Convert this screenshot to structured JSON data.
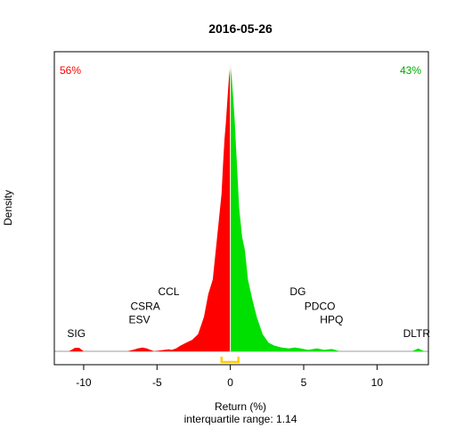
{
  "chart_data": {
    "type": "area",
    "title": "2016-05-26",
    "xlabel": "Return (%)",
    "ylabel": "Density",
    "subtitle": "interquartile range: 1.14",
    "xlim": [
      -12,
      13.5
    ],
    "ylim": [
      0,
      1.0
    ],
    "x_ticks": [
      -10,
      -5,
      0,
      5,
      10
    ],
    "x_tick_labels": [
      "-10",
      "-5",
      "0",
      "5",
      "10"
    ],
    "split_at": 0,
    "share_negative": "56%",
    "share_positive": "43%",
    "interquartile_range": [
      -0.6,
      0.55
    ],
    "colors": {
      "negative": "#ff0000",
      "positive": "#00e000",
      "iqr_bracket": "#ffcc00",
      "baseline": "#bebebe",
      "text": "#000000"
    },
    "density": {
      "x": [
        -11.0,
        -10.6,
        -10.3,
        -10.0,
        -7.0,
        -6.3,
        -6.0,
        -5.7,
        -5.2,
        -4.5,
        -4.2,
        -4.0,
        -3.7,
        -3.4,
        -3.0,
        -2.6,
        -2.2,
        -1.8,
        -1.5,
        -1.2,
        -1.0,
        -0.8,
        -0.6,
        -0.5,
        -0.4,
        -0.3,
        -0.2,
        -0.1,
        0.0,
        0.1,
        0.2,
        0.3,
        0.4,
        0.5,
        0.6,
        0.8,
        1.0,
        1.2,
        1.5,
        1.8,
        2.2,
        2.6,
        3.0,
        3.5,
        4.0,
        4.4,
        4.8,
        5.3,
        5.9,
        6.1,
        6.4,
        6.9,
        7.1,
        7.4,
        12.4,
        12.8,
        13.2
      ],
      "y": [
        0,
        0.012,
        0.012,
        0,
        0,
        0.01,
        0.013,
        0.01,
        0,
        0.005,
        0.007,
        0.005,
        0.01,
        0.02,
        0.03,
        0.04,
        0.06,
        0.12,
        0.2,
        0.25,
        0.35,
        0.45,
        0.55,
        0.65,
        0.74,
        0.8,
        0.88,
        0.95,
        1.0,
        0.95,
        0.88,
        0.8,
        0.7,
        0.6,
        0.5,
        0.4,
        0.35,
        0.25,
        0.18,
        0.12,
        0.06,
        0.03,
        0.02,
        0.013,
        0.01,
        0.013,
        0.01,
        0.005,
        0.01,
        0.008,
        0.005,
        0.008,
        0.006,
        0,
        0,
        0.01,
        0
      ]
    },
    "annotations": [
      {
        "label": "SIG",
        "x": -10.5,
        "y": 0.05
      },
      {
        "label": "ESV",
        "x": -6.2,
        "y": 0.098
      },
      {
        "label": "CSRA",
        "x": -5.8,
        "y": 0.145
      },
      {
        "label": "CCL",
        "x": -4.2,
        "y": 0.196
      },
      {
        "label": "DG",
        "x": 4.6,
        "y": 0.196
      },
      {
        "label": "PDCO",
        "x": 6.1,
        "y": 0.145
      },
      {
        "label": "HPQ",
        "x": 6.9,
        "y": 0.098
      },
      {
        "label": "DLTR",
        "x": 12.7,
        "y": 0.05
      }
    ]
  }
}
